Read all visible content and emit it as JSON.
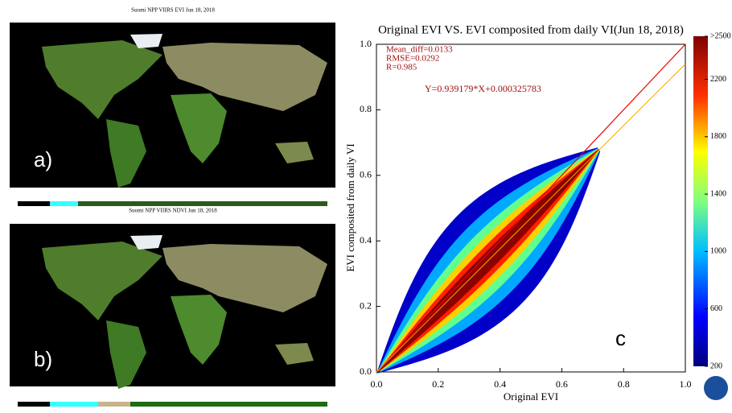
{
  "maps": [
    {
      "title": "Suomi NPP VIIRS EVI Jun 18, 2018",
      "label": "a)"
    },
    {
      "title": "Suomi NPP VIIRS NDVI Jun 18, 2018",
      "label": "b)"
    }
  ],
  "chart_data": {
    "type": "density",
    "title": "Original EVI VS. EVI composited from daily VI(Jun 18, 2018)",
    "xlabel": "Original EVI",
    "ylabel": "EVI composited from daily VI",
    "panel_label": "c",
    "annotations": [
      "Mean_diff=0.0133",
      "RMSE=0.0292",
      "R=0.985"
    ],
    "equation": "Y=0.939179*X+0.000325783",
    "fit": {
      "slope": 0.939179,
      "intercept": 0.000325783
    },
    "xlim": [
      0,
      1
    ],
    "ylim": [
      0,
      1
    ],
    "xticks": [
      {
        "value": 0,
        "label": "0.0"
      },
      0.2,
      0.4,
      0.6,
      0.8,
      {
        "value": 1,
        "label": "1.0"
      }
    ],
    "yticks": [
      {
        "value": 0,
        "label": "0.0"
      },
      0.2,
      0.4,
      0.6,
      0.8,
      {
        "value": 1,
        "label": "1.0"
      }
    ],
    "colorbar_lim": [
      200,
      2500
    ],
    "colorbar_ticks": [
      200,
      600,
      1000,
      1400,
      1800,
      2200,
      {
        "value": 2500,
        "label": ">2500"
      }
    ]
  }
}
